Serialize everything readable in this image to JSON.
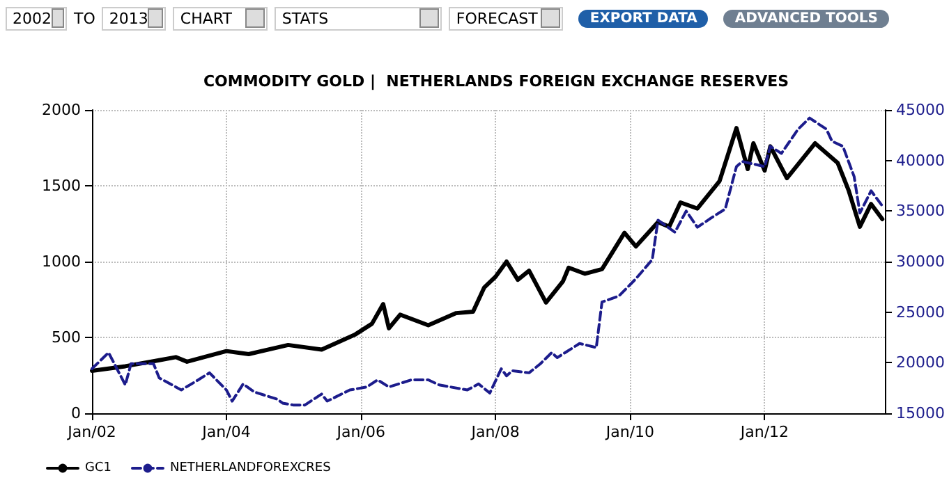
{
  "chart_data": {
    "type": "line",
    "title": "COMMODITY GOLD |  NETHERLANDS FOREIGN EXCHANGE RESERVES",
    "annotations": [
      "2002",
      "TO",
      "2013",
      "CHART",
      "STATS",
      "FORECAST",
      "EXPORT DATA",
      "ADVANCED TOOLS"
    ],
    "xlim": [
      "2002-01-01",
      "2013-10-15"
    ],
    "xticks": [
      {
        "value": "2002-01-01",
        "label": "Jan/02"
      },
      {
        "value": "2004-01-01",
        "label": "Jan/04"
      },
      {
        "value": "2006-01-01",
        "label": "Jan/06"
      },
      {
        "value": "2008-01-01",
        "label": "Jan/08"
      },
      {
        "value": "2010-01-01",
        "label": "Jan/10"
      },
      {
        "value": "2012-01-01",
        "label": "Jan/12"
      }
    ],
    "ylim": [
      0,
      2000
    ],
    "yticks": [
      0,
      500,
      1000,
      1500,
      2000
    ],
    "y2lim": [
      15000,
      45000
    ],
    "y2ticks": [
      15000,
      20000,
      25000,
      30000,
      35000,
      40000,
      45000
    ],
    "grid": true,
    "legend": "bottom left",
    "marker": "none",
    "series": [
      {
        "name": "GC1",
        "color": "#000000",
        "line_style": "solid",
        "x": [
          "2002-01",
          "2002-07",
          "2003-01",
          "2003-04",
          "2003-06",
          "2004-01",
          "2004-05",
          "2004-12",
          "2005-06",
          "2005-12",
          "2006-03",
          "2006-05",
          "2006-06",
          "2006-08",
          "2007-01",
          "2007-06",
          "2007-09",
          "2007-11",
          "2008-01",
          "2008-03",
          "2008-05",
          "2008-07",
          "2008-10",
          "2009-01",
          "2009-02",
          "2009-05",
          "2009-08",
          "2009-12",
          "2010-02",
          "2010-06",
          "2010-08",
          "2010-10",
          "2011-01",
          "2011-05",
          "2011-08",
          "2011-10",
          "2011-11",
          "2012-01",
          "2012-02",
          "2012-05",
          "2012-10",
          "2013-02",
          "2013-04",
          "2013-06",
          "2013-08",
          "2013-10"
        ],
        "values": [
          280,
          310,
          350,
          370,
          340,
          410,
          390,
          450,
          420,
          520,
          590,
          720,
          560,
          650,
          580,
          660,
          670,
          830,
          900,
          1000,
          880,
          940,
          730,
          870,
          960,
          920,
          950,
          1190,
          1100,
          1260,
          1230,
          1390,
          1350,
          1530,
          1880,
          1610,
          1780,
          1600,
          1760,
          1550,
          1780,
          1650,
          1470,
          1230,
          1380,
          1280
        ]
      },
      {
        "name": "NETHERLANDFOREXCRES",
        "color": "#1c1c8c",
        "line_style": "dashed",
        "axis": "y2",
        "x": [
          "2002-01",
          "2002-04",
          "2002-07",
          "2002-08",
          "2002-12",
          "2003-01",
          "2003-04",
          "2003-05",
          "2003-08",
          "2003-10",
          "2004-01",
          "2004-02",
          "2004-04",
          "2004-06",
          "2004-10",
          "2004-11",
          "2005-01",
          "2005-03",
          "2005-06",
          "2005-07",
          "2005-11",
          "2006-02",
          "2006-04",
          "2006-06",
          "2006-10",
          "2007-01",
          "2007-03",
          "2007-08",
          "2007-10",
          "2007-12",
          "2008-02",
          "2008-03",
          "2008-04",
          "2008-07",
          "2008-09",
          "2008-11",
          "2008-12",
          "2009-04",
          "2009-07",
          "2009-08",
          "2009-11",
          "2010-02",
          "2010-05",
          "2010-06",
          "2010-09",
          "2010-11",
          "2011-01",
          "2011-04",
          "2011-06",
          "2011-08",
          "2011-09",
          "2012-01",
          "2012-02",
          "2012-04",
          "2012-07",
          "2012-09",
          "2012-12",
          "2013-01",
          "2013-03",
          "2013-05",
          "2013-06",
          "2013-08",
          "2013-10"
        ],
        "values": [
          19400,
          21000,
          17800,
          19900,
          19900,
          18500,
          17600,
          17300,
          18300,
          19000,
          17300,
          16200,
          17900,
          17100,
          16400,
          16000,
          15800,
          15800,
          16900,
          16200,
          17300,
          17600,
          18300,
          17600,
          18300,
          18300,
          17800,
          17300,
          17900,
          17000,
          19400,
          18700,
          19200,
          19000,
          19900,
          21000,
          20500,
          21900,
          21500,
          26000,
          26600,
          28300,
          30200,
          34100,
          32900,
          35000,
          33400,
          34500,
          35200,
          39400,
          39900,
          39400,
          41400,
          40700,
          43100,
          44200,
          43100,
          41900,
          41400,
          38400,
          34800,
          37000,
          35500
        ]
      }
    ]
  }
}
